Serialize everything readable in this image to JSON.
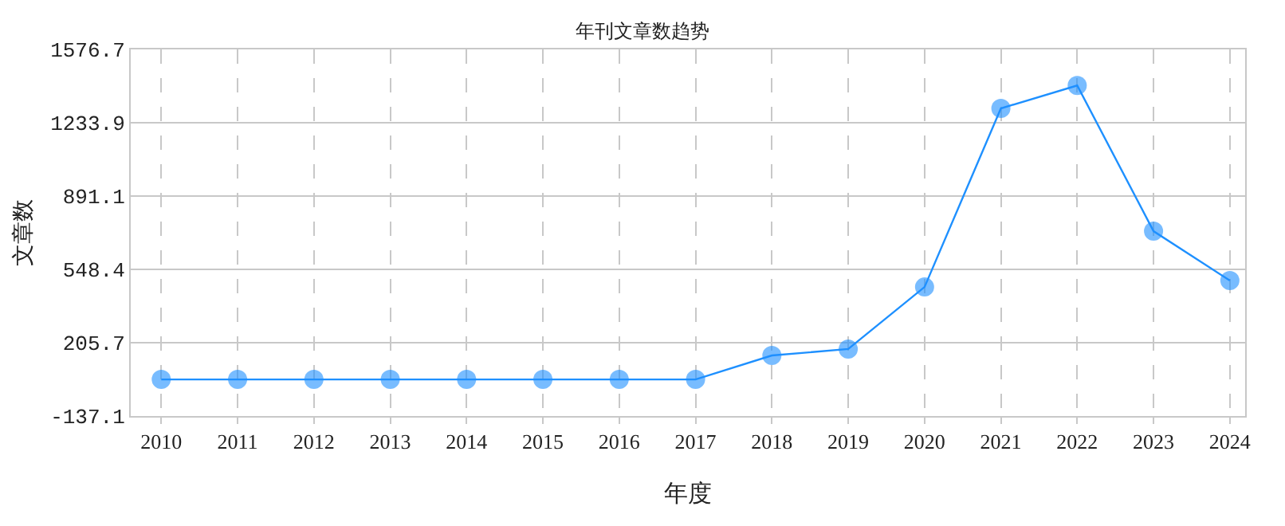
{
  "chart_data": {
    "type": "line",
    "title": "年刊文章数趋势",
    "xlabel": "年度",
    "ylabel": "文章数",
    "categories": [
      "2010",
      "2011",
      "2012",
      "2013",
      "2014",
      "2015",
      "2016",
      "2017",
      "2018",
      "2019",
      "2020",
      "2021",
      "2022",
      "2023",
      "2024"
    ],
    "series": [
      {
        "color": "#1e90ff",
        "values": [
          34,
          34,
          34,
          34,
          34,
          34,
          34,
          34,
          146,
          176,
          466,
          1301,
          1408,
          727,
          496
        ]
      }
    ],
    "ylim": [
      -137.1,
      1576.7
    ],
    "yticks": [
      -137.1,
      205.7,
      548.4,
      891.1,
      1233.9,
      1576.7
    ],
    "grid": true,
    "marker": "circle",
    "line_style": "solid"
  }
}
